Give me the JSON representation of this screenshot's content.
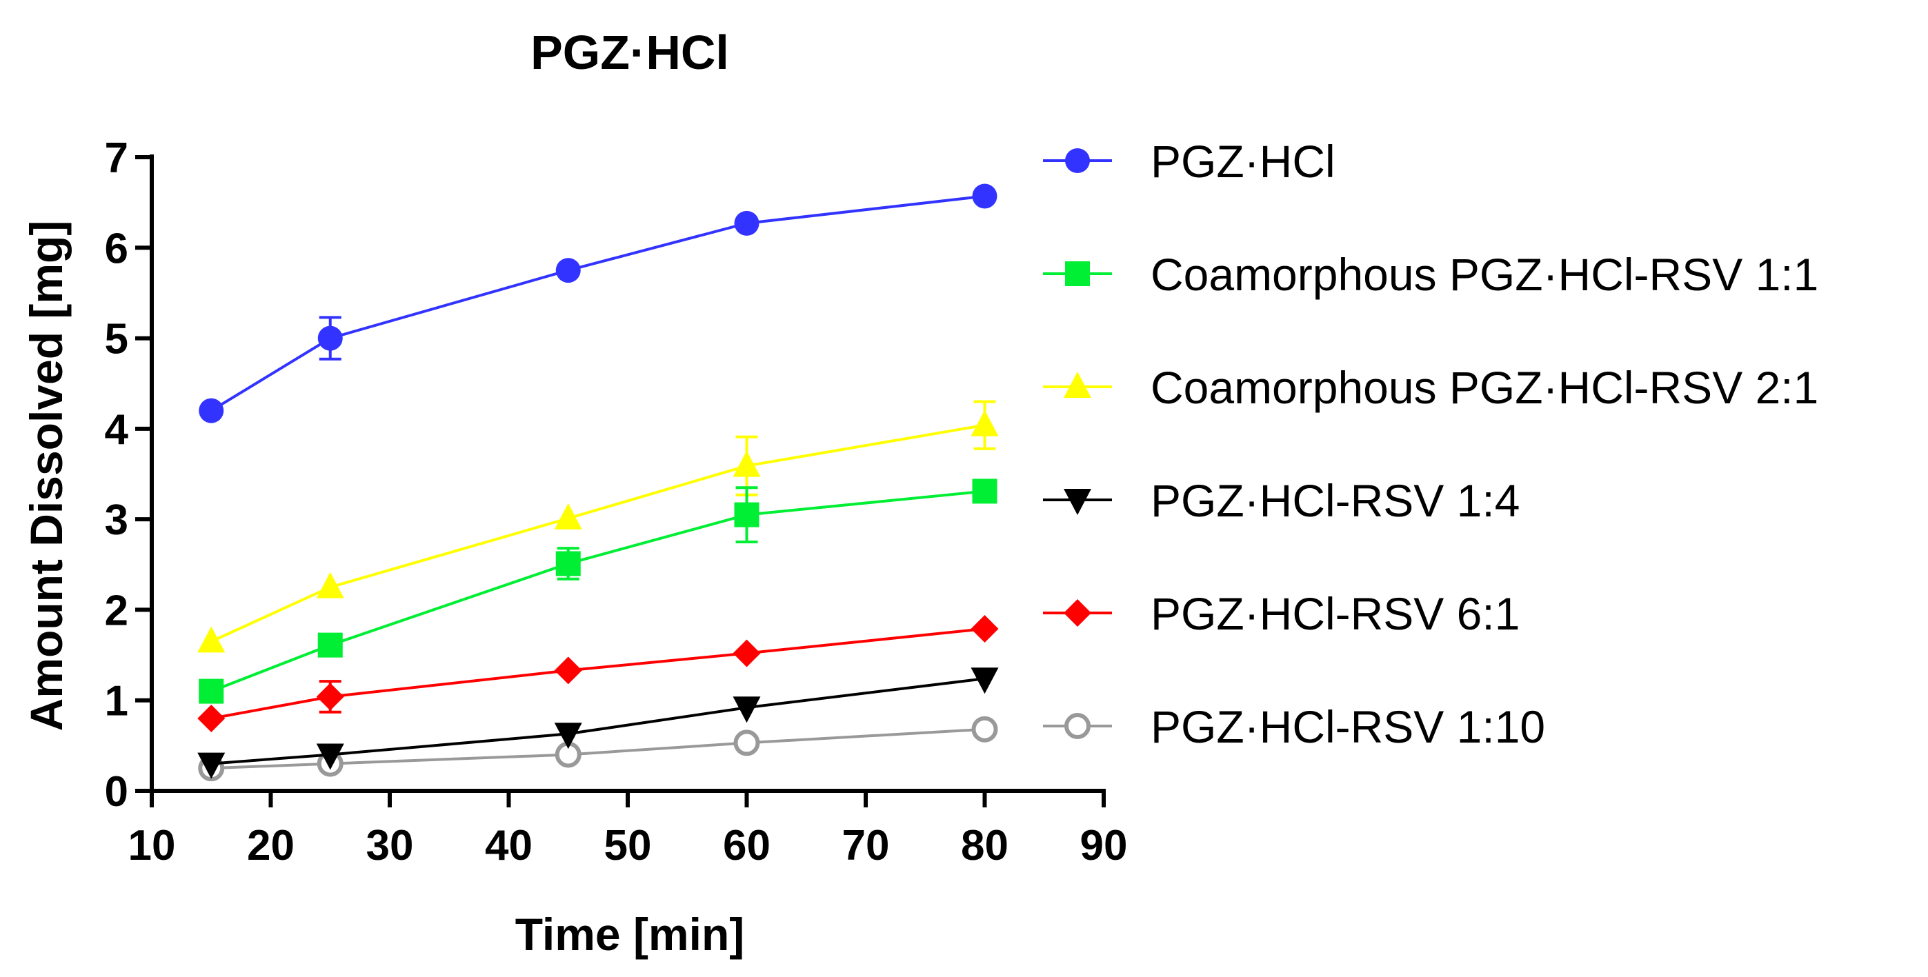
{
  "chart_data": {
    "type": "line",
    "title": "PGZ·HCl",
    "xlabel": "Time [min]",
    "ylabel": "Amount Dissolved [mg]",
    "xlim": [
      10,
      90
    ],
    "ylim": [
      0,
      7
    ],
    "xticks": [
      10,
      20,
      30,
      40,
      50,
      60,
      70,
      80,
      90
    ],
    "yticks": [
      0,
      1,
      2,
      3,
      4,
      5,
      6,
      7
    ],
    "grid": false,
    "legend_position": "right",
    "x": [
      15,
      25,
      45,
      60,
      80
    ],
    "series": [
      {
        "name": "PGZ·HCl",
        "color": "#3333ff",
        "marker": "circle",
        "values": [
          4.2,
          5.0,
          5.75,
          6.27,
          6.57
        ],
        "errors": [
          0.0,
          0.23,
          0.0,
          0.0,
          0.0
        ]
      },
      {
        "name": "Coamorphous PGZ·HCl-RSV 1:1",
        "color": "#00ee33",
        "marker": "square",
        "values": [
          1.1,
          1.61,
          2.51,
          3.05,
          3.31
        ],
        "errors": [
          0.0,
          0.0,
          0.17,
          0.3,
          0.0
        ]
      },
      {
        "name": "Coamorphous PGZ·HCl-RSV 2:1",
        "color": "#ffff00",
        "marker": "triangle-up",
        "values": [
          1.65,
          2.25,
          3.01,
          3.59,
          4.04
        ],
        "errors": [
          0.0,
          0.0,
          0.0,
          0.32,
          0.26
        ]
      },
      {
        "name": "PGZ·HCl-RSV 1:4",
        "color": "#000000",
        "marker": "triangle-down",
        "values": [
          0.3,
          0.4,
          0.63,
          0.92,
          1.24
        ],
        "errors": [
          0,
          0,
          0,
          0,
          0
        ]
      },
      {
        "name": "PGZ·HCl-RSV 6:1",
        "color": "#ff0000",
        "marker": "diamond",
        "values": [
          0.8,
          1.04,
          1.33,
          1.52,
          1.79
        ],
        "errors": [
          0.0,
          0.17,
          0.0,
          0.0,
          0.0
        ]
      },
      {
        "name": "PGZ·HCl-RSV 1:10",
        "color": "#999999",
        "marker": "circle-open",
        "values": [
          0.25,
          0.3,
          0.4,
          0.53,
          0.68
        ],
        "errors": [
          0,
          0,
          0,
          0,
          0
        ]
      }
    ]
  }
}
